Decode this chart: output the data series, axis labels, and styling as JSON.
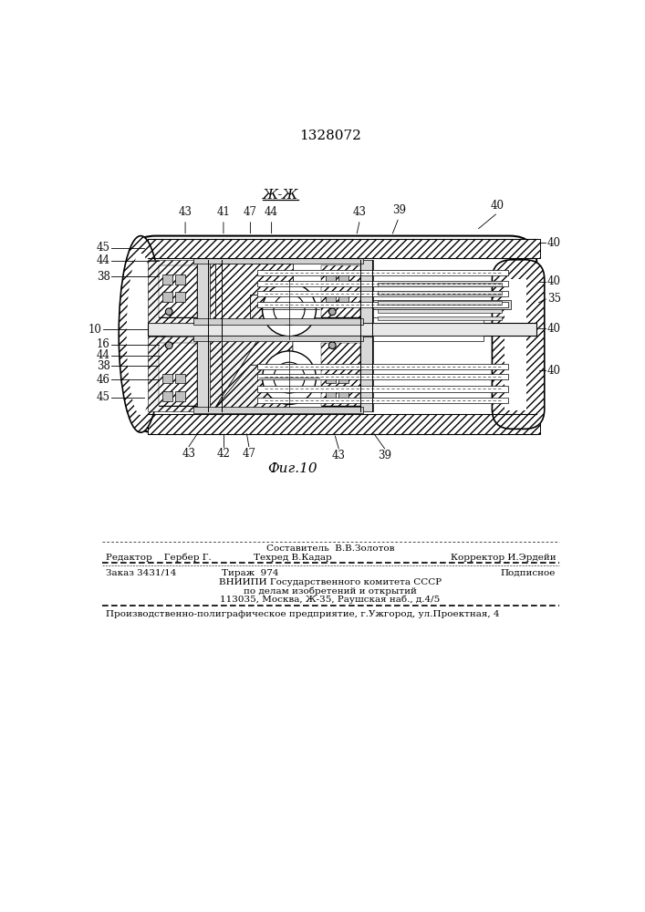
{
  "patent_number": "1328072",
  "section_label": "Ж-Ж",
  "fig_label": "Фиг.10",
  "bg_color": "#ffffff",
  "text_color": "#000000",
  "footer": {
    "compiler": "Составитель  В.В.Золотов",
    "techred": "Техред В.Кадар",
    "editor_label": "Редактор",
    "editor_name": "Гербер Г.",
    "corrector_label": "Корректор И.Эрдейи",
    "order": "Заказ 3431/14",
    "tirazh": "Тираж  974",
    "podpisnoe": "Подписное",
    "vnipi_line1": "ВНИИПИ Государственного комитета СССР",
    "vnipi_line2": "по делам изобретений и открытий",
    "vnipi_line3": "113035, Москва, Ж-35, Раушская наб., д.4/5",
    "production": "Производственно-полиграфическое предприятие, г.Ужгород, ул.Проектная, 4"
  }
}
